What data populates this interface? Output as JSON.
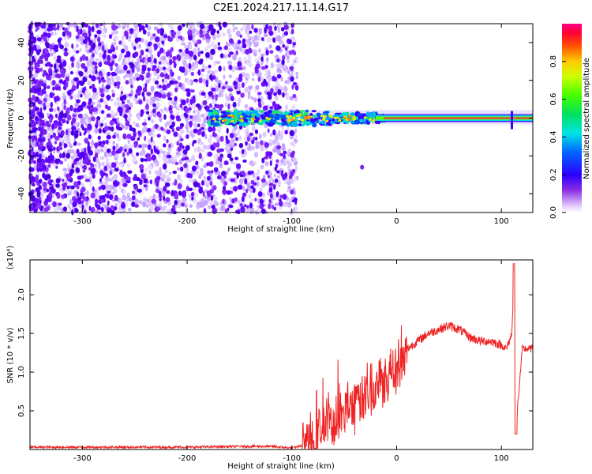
{
  "title": "C2E1.2024.217.11.14.G17",
  "colors": {
    "snr_line": "#ee2222",
    "axis": "#000000",
    "background": "#ffffff"
  },
  "chart_data": [
    {
      "type": "heatmap",
      "xlabel": "Height of straight line (km)",
      "ylabel": "Frequency (Hz)",
      "xlim": [
        -350,
        130
      ],
      "ylim": [
        -50,
        50
      ],
      "xticks": [
        -300,
        -200,
        -100,
        0,
        100
      ],
      "xtick_labels": [
        "-300",
        "-200",
        "-100",
        "0",
        "100"
      ],
      "yticks": [
        -40,
        -20,
        0,
        20,
        40
      ],
      "ytick_labels": [
        "-40",
        "-20",
        "0",
        "20",
        "40"
      ],
      "colorbar": {
        "label": "Normalized spectral amplitude",
        "range": [
          0,
          1
        ],
        "ticks": [
          0.0,
          0.2,
          0.4,
          0.6,
          0.8
        ],
        "tick_labels": [
          "0.0",
          "0.2",
          "0.4",
          "0.6",
          "0.8"
        ],
        "colormap": "rainbow"
      },
      "regions": {
        "noise_x_range": [
          -350,
          -95
        ],
        "signal_start_x": -180,
        "signal_frequency_hz": 0,
        "isolated_blob": {
          "x": -33,
          "y": -26
        }
      }
    },
    {
      "type": "line",
      "xlabel": "Height of straight line (km)",
      "ylabel": "SNR (10 * v/v)",
      "scale_label": "(x10⁴)",
      "xlim": [
        -350,
        130
      ],
      "ylim": [
        0,
        2.45
      ],
      "xticks": [
        -300,
        -200,
        -100,
        0,
        100
      ],
      "xtick_labels": [
        "-300",
        "-200",
        "-100",
        "0",
        "100"
      ],
      "yticks": [
        0.5,
        1.0,
        1.5,
        2.0
      ],
      "ytick_labels": [
        "0.5",
        "1.0",
        "1.5",
        "2.0"
      ],
      "series": [
        {
          "x": [
            -350,
            -300,
            -250,
            -200,
            -150,
            -120,
            -110,
            -100,
            -90,
            -80,
            -70,
            -60,
            -50,
            -40,
            -30,
            -20,
            -10,
            0,
            10,
            20,
            30,
            40,
            50,
            60,
            70,
            80,
            90,
            100,
            105,
            110,
            112,
            114,
            120,
            130
          ],
          "values": [
            0.03,
            0.03,
            0.03,
            0.03,
            0.04,
            0.04,
            0.03,
            0.02,
            0.05,
            0.15,
            0.3,
            0.35,
            0.5,
            0.55,
            0.7,
            0.85,
            0.95,
            1.05,
            1.3,
            1.4,
            1.5,
            1.55,
            1.6,
            1.55,
            1.45,
            1.4,
            1.4,
            1.35,
            1.3,
            1.5,
            2.2,
            0.3,
            1.3,
            1.3
          ]
        }
      ]
    }
  ]
}
